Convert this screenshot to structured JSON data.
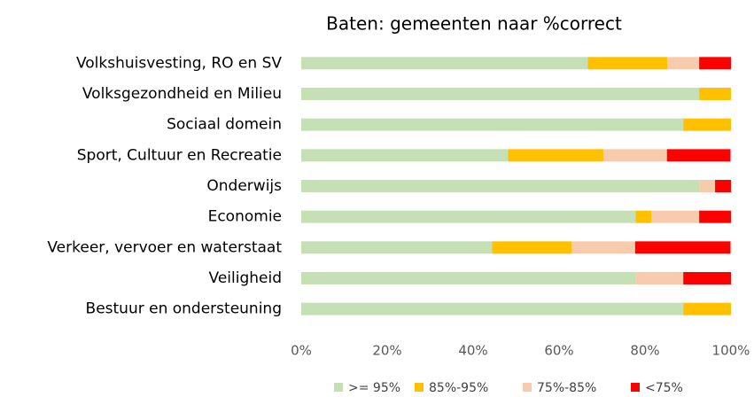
{
  "chart_data": {
    "type": "stacked_bar_horizontal",
    "title": "Baten: gemeenten naar %correct",
    "categories": [
      "Volkshuisvesting, RO en SV",
      "Volksgezondheid en Milieu",
      "Sociaal domein",
      "Sport, Cultuur en Recreatie",
      "Onderwijs",
      "Economie",
      "Verkeer, vervoer en waterstaat",
      "Veiligheid",
      "Bestuur en ondersteuning"
    ],
    "series": [
      {
        "name": ">= 95%",
        "color": "#c5e0b4",
        "values": [
          66.7,
          92.6,
          88.9,
          48.1,
          92.6,
          77.8,
          44.4,
          77.8,
          88.9
        ]
      },
      {
        "name": "85%-95%",
        "color": "#ffc000",
        "values": [
          18.5,
          7.4,
          11.1,
          22.2,
          0,
          3.7,
          18.5,
          0,
          11.1
        ]
      },
      {
        "name": "75%-85%",
        "color": "#f8cbad",
        "values": [
          7.4,
          0,
          0,
          14.8,
          3.7,
          11.1,
          14.8,
          11.1,
          0
        ]
      },
      {
        "name": "<75%",
        "color": "#ff0000",
        "values": [
          7.4,
          0,
          0,
          14.8,
          3.7,
          7.4,
          22.2,
          11.1,
          0
        ]
      }
    ],
    "xlim": [
      0,
      100
    ],
    "xticks": [
      {
        "value": 0,
        "label": "0%"
      },
      {
        "value": 20,
        "label": "20%"
      },
      {
        "value": 40,
        "label": "40%"
      },
      {
        "value": 60,
        "label": "60%"
      },
      {
        "value": 80,
        "label": "80%"
      },
      {
        "value": 100,
        "label": "100%"
      }
    ],
    "grid": false,
    "legend": "bottom"
  }
}
